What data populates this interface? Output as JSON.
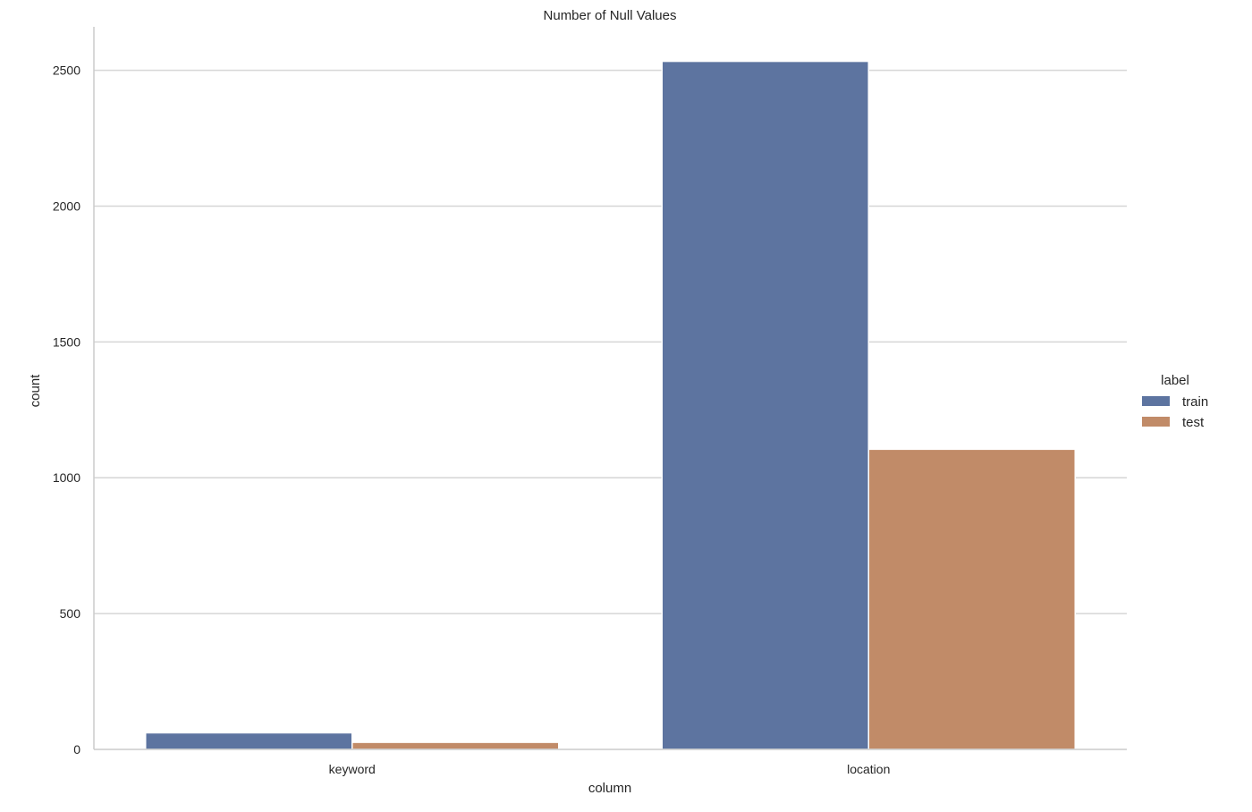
{
  "chart_data": {
    "type": "bar",
    "title": "Number of Null Values",
    "xlabel": "column",
    "ylabel": "count",
    "categories": [
      "keyword",
      "location"
    ],
    "series": [
      {
        "name": "train",
        "values": [
          61,
          2533
        ],
        "color": "#5d74a0"
      },
      {
        "name": "test",
        "values": [
          26,
          1105
        ],
        "color": "#c18b68"
      }
    ],
    "ylim": [
      0,
      2660
    ],
    "yticks": [
      0,
      500,
      1000,
      1500,
      2000,
      2500
    ],
    "grid": "horizontal",
    "legend": {
      "title": "label",
      "placement": "right"
    }
  }
}
